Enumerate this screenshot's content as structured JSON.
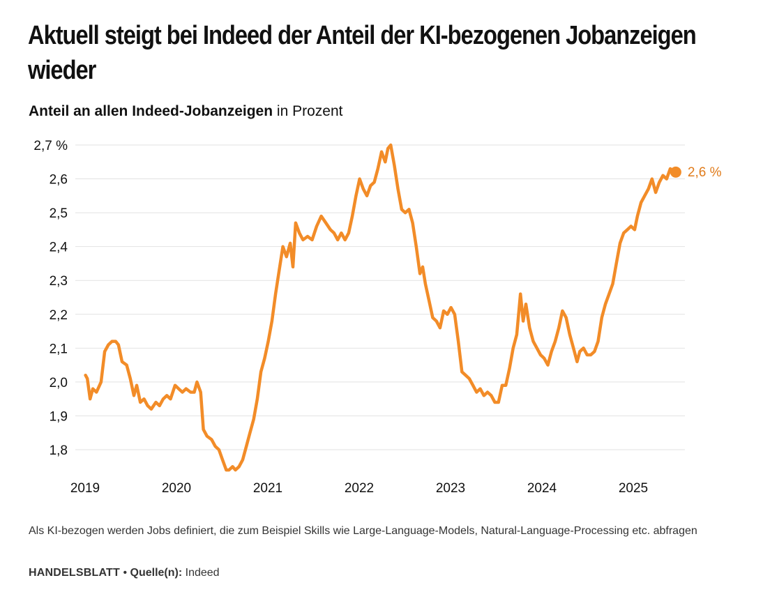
{
  "header": {
    "title": "Aktuell steigt bei Indeed der Anteil der KI-bezogenen Jobanzeigen wieder",
    "subtitle_strong": "Anteil an allen Indeed-Jobanzeigen",
    "subtitle_unit": "in Prozent"
  },
  "footer": {
    "note": "Als KI-bezogen werden Jobs definiert, die zum Beispiel Skills wie Large-Language-Models, Natural-Language-Processing etc. abfragen",
    "brand": "HANDELSBLATT",
    "separator": "•",
    "source_label": "Quelle(n):",
    "source_value": "Indeed"
  },
  "colors": {
    "line": "#F28C28",
    "end_label": "#E07B1A",
    "grid": "#e2e2e2",
    "text": "#111111"
  },
  "chart_data": {
    "type": "line",
    "x_ticks": [
      "2019",
      "2020",
      "2021",
      "2022",
      "2023",
      "2024",
      "2025"
    ],
    "y_ticks": [
      "2,7 %",
      "2,6",
      "2,5",
      "2,4",
      "2,3",
      "2,2",
      "2,1",
      "2,0",
      "1,9",
      "1,8"
    ],
    "y_tick_values": [
      2.7,
      2.6,
      2.5,
      2.4,
      2.3,
      2.2,
      2.1,
      2.0,
      1.9,
      1.8
    ],
    "ylim": [
      1.73,
      2.7
    ],
    "xlim": [
      2019.0,
      2025.62
    ],
    "grid": "horizontal",
    "end_label": "2,6 %",
    "end_point": [
      2025.48,
      2.62
    ],
    "series": [
      {
        "points": [
          [
            2019.02,
            2.02
          ],
          [
            2019.04,
            2.01
          ],
          [
            2019.07,
            1.95
          ],
          [
            2019.1,
            1.98
          ],
          [
            2019.14,
            1.97
          ],
          [
            2019.19,
            2.0
          ],
          [
            2019.23,
            2.09
          ],
          [
            2019.27,
            2.11
          ],
          [
            2019.31,
            2.12
          ],
          [
            2019.35,
            2.12
          ],
          [
            2019.38,
            2.11
          ],
          [
            2019.42,
            2.06
          ],
          [
            2019.47,
            2.05
          ],
          [
            2019.51,
            2.01
          ],
          [
            2019.55,
            1.96
          ],
          [
            2019.58,
            1.99
          ],
          [
            2019.62,
            1.94
          ],
          [
            2019.66,
            1.95
          ],
          [
            2019.7,
            1.93
          ],
          [
            2019.74,
            1.92
          ],
          [
            2019.79,
            1.94
          ],
          [
            2019.83,
            1.93
          ],
          [
            2019.87,
            1.95
          ],
          [
            2019.91,
            1.96
          ],
          [
            2019.95,
            1.95
          ],
          [
            2020.0,
            1.99
          ],
          [
            2020.04,
            1.98
          ],
          [
            2020.08,
            1.97
          ],
          [
            2020.12,
            1.98
          ],
          [
            2020.17,
            1.97
          ],
          [
            2020.21,
            1.97
          ],
          [
            2020.24,
            2.0
          ],
          [
            2020.28,
            1.97
          ],
          [
            2020.31,
            1.86
          ],
          [
            2020.35,
            1.84
          ],
          [
            2020.4,
            1.83
          ],
          [
            2020.44,
            1.81
          ],
          [
            2020.48,
            1.8
          ],
          [
            2020.52,
            1.77
          ],
          [
            2020.56,
            1.74
          ],
          [
            2020.59,
            1.74
          ],
          [
            2020.63,
            1.75
          ],
          [
            2020.66,
            1.74
          ],
          [
            2020.7,
            1.75
          ],
          [
            2020.74,
            1.77
          ],
          [
            2020.78,
            1.81
          ],
          [
            2020.82,
            1.85
          ],
          [
            2020.86,
            1.89
          ],
          [
            2020.9,
            1.95
          ],
          [
            2020.94,
            2.03
          ],
          [
            2020.98,
            2.07
          ],
          [
            2021.02,
            2.12
          ],
          [
            2021.06,
            2.18
          ],
          [
            2021.1,
            2.26
          ],
          [
            2021.14,
            2.33
          ],
          [
            2021.18,
            2.4
          ],
          [
            2021.22,
            2.37
          ],
          [
            2021.26,
            2.41
          ],
          [
            2021.29,
            2.34
          ],
          [
            2021.32,
            2.47
          ],
          [
            2021.36,
            2.44
          ],
          [
            2021.4,
            2.42
          ],
          [
            2021.45,
            2.43
          ],
          [
            2021.5,
            2.42
          ],
          [
            2021.55,
            2.46
          ],
          [
            2021.6,
            2.49
          ],
          [
            2021.65,
            2.47
          ],
          [
            2021.7,
            2.45
          ],
          [
            2021.74,
            2.44
          ],
          [
            2021.78,
            2.42
          ],
          [
            2021.82,
            2.44
          ],
          [
            2021.86,
            2.42
          ],
          [
            2021.9,
            2.44
          ],
          [
            2021.94,
            2.49
          ],
          [
            2021.98,
            2.55
          ],
          [
            2022.02,
            2.6
          ],
          [
            2022.06,
            2.57
          ],
          [
            2022.1,
            2.55
          ],
          [
            2022.14,
            2.58
          ],
          [
            2022.18,
            2.59
          ],
          [
            2022.22,
            2.63
          ],
          [
            2022.26,
            2.68
          ],
          [
            2022.3,
            2.65
          ],
          [
            2022.33,
            2.69
          ],
          [
            2022.36,
            2.7
          ],
          [
            2022.4,
            2.64
          ],
          [
            2022.44,
            2.57
          ],
          [
            2022.48,
            2.51
          ],
          [
            2022.52,
            2.5
          ],
          [
            2022.56,
            2.51
          ],
          [
            2022.6,
            2.47
          ],
          [
            2022.64,
            2.4
          ],
          [
            2022.68,
            2.32
          ],
          [
            2022.71,
            2.34
          ],
          [
            2022.74,
            2.29
          ],
          [
            2022.78,
            2.24
          ],
          [
            2022.82,
            2.19
          ],
          [
            2022.86,
            2.18
          ],
          [
            2022.9,
            2.16
          ],
          [
            2022.94,
            2.21
          ],
          [
            2022.98,
            2.2
          ],
          [
            2023.02,
            2.22
          ],
          [
            2023.06,
            2.2
          ],
          [
            2023.1,
            2.12
          ],
          [
            2023.14,
            2.03
          ],
          [
            2023.18,
            2.02
          ],
          [
            2023.22,
            2.01
          ],
          [
            2023.26,
            1.99
          ],
          [
            2023.3,
            1.97
          ],
          [
            2023.34,
            1.98
          ],
          [
            2023.38,
            1.96
          ],
          [
            2023.42,
            1.97
          ],
          [
            2023.46,
            1.96
          ],
          [
            2023.5,
            1.94
          ],
          [
            2023.54,
            1.94
          ],
          [
            2023.58,
            1.99
          ],
          [
            2023.62,
            1.99
          ],
          [
            2023.66,
            2.04
          ],
          [
            2023.7,
            2.1
          ],
          [
            2023.74,
            2.14
          ],
          [
            2023.78,
            2.26
          ],
          [
            2023.81,
            2.18
          ],
          [
            2023.84,
            2.23
          ],
          [
            2023.88,
            2.16
          ],
          [
            2023.92,
            2.12
          ],
          [
            2023.96,
            2.1
          ],
          [
            2024.0,
            2.08
          ],
          [
            2024.04,
            2.07
          ],
          [
            2024.08,
            2.05
          ],
          [
            2024.12,
            2.09
          ],
          [
            2024.16,
            2.12
          ],
          [
            2024.2,
            2.16
          ],
          [
            2024.24,
            2.21
          ],
          [
            2024.28,
            2.19
          ],
          [
            2024.32,
            2.14
          ],
          [
            2024.36,
            2.1
          ],
          [
            2024.4,
            2.06
          ],
          [
            2024.43,
            2.09
          ],
          [
            2024.47,
            2.1
          ],
          [
            2024.51,
            2.08
          ],
          [
            2024.55,
            2.08
          ],
          [
            2024.59,
            2.09
          ],
          [
            2024.63,
            2.12
          ],
          [
            2024.67,
            2.19
          ],
          [
            2024.71,
            2.23
          ],
          [
            2024.75,
            2.26
          ],
          [
            2024.79,
            2.29
          ],
          [
            2024.83,
            2.35
          ],
          [
            2024.87,
            2.41
          ],
          [
            2024.91,
            2.44
          ],
          [
            2024.95,
            2.45
          ],
          [
            2024.99,
            2.46
          ],
          [
            2025.03,
            2.45
          ],
          [
            2025.06,
            2.49
          ],
          [
            2025.1,
            2.53
          ],
          [
            2025.14,
            2.55
          ],
          [
            2025.18,
            2.57
          ],
          [
            2025.22,
            2.6
          ],
          [
            2025.26,
            2.56
          ],
          [
            2025.3,
            2.59
          ],
          [
            2025.34,
            2.61
          ],
          [
            2025.38,
            2.6
          ],
          [
            2025.42,
            2.63
          ],
          [
            2025.48,
            2.62
          ]
        ]
      }
    ]
  }
}
